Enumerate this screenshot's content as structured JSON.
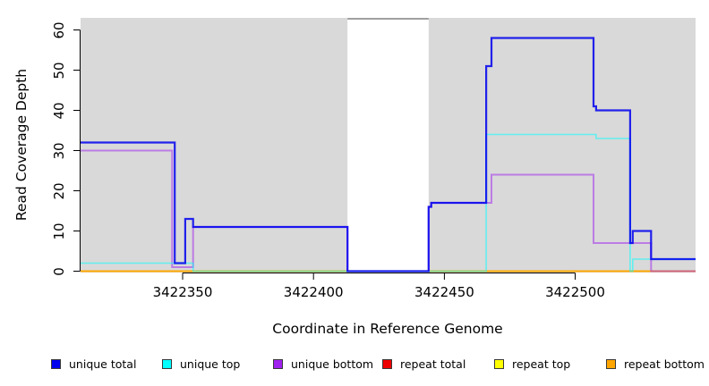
{
  "chart_data": {
    "type": "line",
    "subtype": "step-coverage",
    "title": "",
    "xlabel": "Coordinate in Reference Genome",
    "ylabel": "Read Coverage Depth",
    "xlim": [
      3422311,
      3422546
    ],
    "ylim": [
      0,
      63
    ],
    "x_ticks": [
      3422350,
      3422400,
      3422450,
      3422500
    ],
    "y_ticks": [
      0,
      10,
      20,
      30,
      40,
      50,
      60
    ],
    "grid": false,
    "panel_background": "#D9D9D9",
    "axis_color": "#000000",
    "gap_region": {
      "x_start": 3422413,
      "x_end": 3422444,
      "fill": "#FFFFFF",
      "top_line_color": "#808080"
    },
    "series": [
      {
        "name": "repeat total",
        "color": "#EE0000",
        "line_width": 1.4,
        "opacity": 0.9,
        "steps": [
          [
            3422311,
            0
          ],
          [
            3422546,
            0
          ]
        ]
      },
      {
        "name": "repeat top",
        "color": "#FFFF00",
        "line_width": 1.4,
        "opacity": 0.9,
        "steps": [
          [
            3422311,
            0
          ],
          [
            3422546,
            0
          ]
        ]
      },
      {
        "name": "repeat bottom",
        "color": "#FFA500",
        "line_width": 2,
        "opacity": 0.92,
        "steps": [
          [
            3422311,
            0
          ],
          [
            3422546,
            0
          ]
        ]
      },
      {
        "name": "unique bottom",
        "color": "#A020F0",
        "line_width": 2,
        "opacity": 0.5,
        "steps": [
          [
            3422311,
            30
          ],
          [
            3422346,
            1
          ],
          [
            3422354,
            11
          ],
          [
            3422413,
            0
          ],
          [
            3422444,
            16
          ],
          [
            3422445,
            17
          ],
          [
            3422468,
            24
          ],
          [
            3422507,
            7
          ],
          [
            3422529,
            0
          ],
          [
            3422546,
            0
          ]
        ]
      },
      {
        "name": "unique top",
        "color": "#00FFFF",
        "line_width": 1.6,
        "opacity": 0.55,
        "steps": [
          [
            3422311,
            2
          ],
          [
            3422354,
            0
          ],
          [
            3422466,
            34
          ],
          [
            3422508,
            33
          ],
          [
            3422521,
            0
          ],
          [
            3422522,
            3
          ],
          [
            3422546,
            3
          ]
        ]
      },
      {
        "name": "unique total",
        "color": "#0000EE",
        "line_width": 2.2,
        "opacity": 0.85,
        "steps": [
          [
            3422311,
            32
          ],
          [
            3422347,
            2
          ],
          [
            3422351,
            13
          ],
          [
            3422354,
            11
          ],
          [
            3422413,
            0
          ],
          [
            3422444,
            16
          ],
          [
            3422445,
            17
          ],
          [
            3422466,
            51
          ],
          [
            3422468,
            58
          ],
          [
            3422507,
            41
          ],
          [
            3422508,
            40
          ],
          [
            3422521,
            7
          ],
          [
            3422522,
            10
          ],
          [
            3422529,
            3
          ],
          [
            3422546,
            3
          ]
        ]
      }
    ],
    "legend": {
      "position": "bottom",
      "items": [
        {
          "label": "unique total",
          "color": "#0000EE"
        },
        {
          "label": "unique top",
          "color": "#00FFFF"
        },
        {
          "label": "unique bottom",
          "color": "#A020F0"
        },
        {
          "label": "repeat total",
          "color": "#EE0000"
        },
        {
          "label": "repeat top",
          "color": "#FFFF00"
        },
        {
          "label": "repeat bottom",
          "color": "#FFA500"
        }
      ]
    }
  }
}
